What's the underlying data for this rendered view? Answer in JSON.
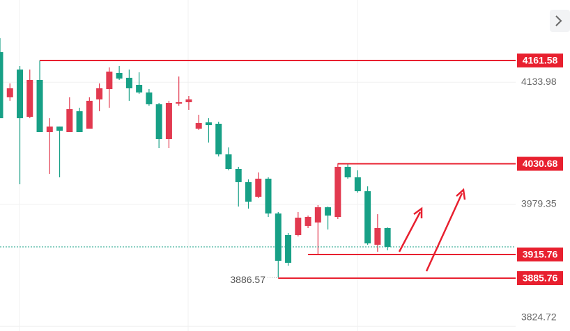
{
  "chart_data": {
    "type": "candlestick",
    "open": [
      4172.2,
      4114.9,
      4150.1,
      4090.2,
      4136.9,
      4070.8,
      4077.9,
      4070.8,
      4097.3,
      4075.2,
      4112.2,
      4125.4,
      4145.7,
      4139.6,
      4130.7,
      4121.0,
      4106.1,
      4062.0,
      4106.9,
      4108.7,
      4075.2,
      4083.2,
      4081.4,
      4042.6,
      4024.1,
      4007.4,
      3988.9,
      4011.8,
      3967.7,
      3940.4,
      3940.4,
      3951.9,
      3956.3,
      3975.6,
      3963.3,
      4026.8,
      4013.5,
      3995.9,
      3928.1,
      3949.2
    ],
    "high": [
      4189.8,
      4132.5,
      4154.5,
      4150.1,
      4161.58,
      4088.4,
      4077.9,
      4114.9,
      4101.7,
      4114.9,
      4132.5,
      4152.8,
      4154.5,
      4150.1,
      4146.6,
      4125.4,
      4107.8,
      4110.5,
      4141.3,
      4116.6,
      4092.8,
      4088.4,
      4084.0,
      4051.4,
      4026.8,
      4010.9,
      4019.7,
      4013.5,
      3969.5,
      3943.0,
      3969.5,
      3965.1,
      3978.3,
      3976.5,
      4031.2,
      4031.2,
      4022.4,
      4002.1,
      3966.8,
      3950.1
    ],
    "low": [
      4088.4,
      4110.5,
      4004.7,
      4088.4,
      4070.8,
      4017.9,
      4013.5,
      4070.8,
      4070.8,
      4075.2,
      4097.3,
      4101.7,
      4136.9,
      4110.5,
      4119.3,
      4104.3,
      4050.5,
      4050.5,
      4104.3,
      4099.0,
      4073.5,
      4057.6,
      4040.0,
      4022.4,
      3976.5,
      3973.9,
      3987.1,
      3963.3,
      3886.57,
      3901.6,
      3938.6,
      3949.2,
      3916.6,
      3947.4,
      3960.7,
      4011.8,
      3994.2,
      3928.1,
      3919.2,
      3921.0
    ],
    "close": [
      4088.4,
      4126.3,
      4088.4,
      4136.9,
      4070.8,
      4077.9,
      4072.6,
      4099.9,
      4070.8,
      4110.5,
      4126.3,
      4147.5,
      4138.7,
      4126.3,
      4121.0,
      4106.1,
      4062.0,
      4107.8,
      4108.7,
      4112.2,
      4082.3,
      4079.6,
      4042.6,
      4024.1,
      4007.4,
      3982.7,
      4011.8,
      3967.7,
      3907.8,
      3905.2,
      3962.4,
      3963.3,
      3975.6,
      3965.1,
      4026.8,
      4013.5,
      3995.9,
      3929.8,
      3949.2,
      3925.4
    ],
    "up_color": "#e2394f",
    "down_color": "#17a086",
    "level_color": "#e8202f",
    "levels": [
      4161.58,
      4030.68,
      3915.76,
      3885.76
    ],
    "last_price": 3925.4,
    "low_annotation": "3886.57",
    "ylim": [
      3818.8,
      4238.2
    ],
    "yticks": [
      4133.98,
      3979.35,
      3824.72
    ]
  }
}
